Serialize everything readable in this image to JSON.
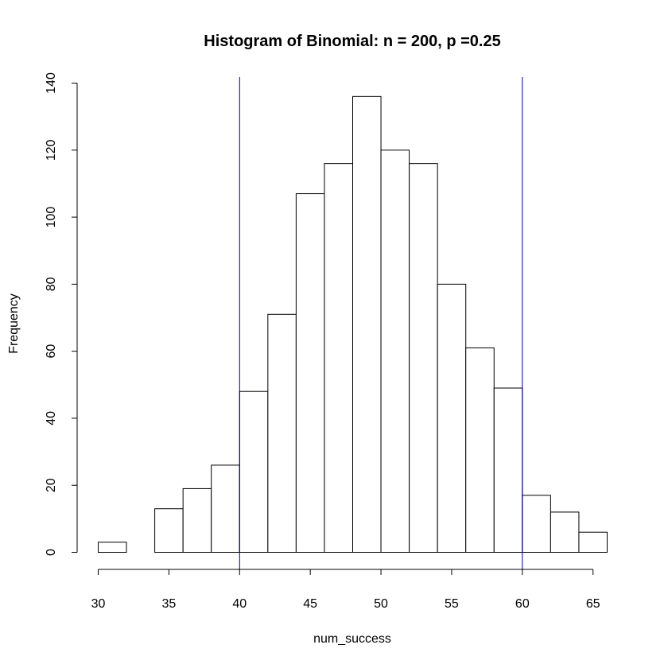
{
  "chart_data": {
    "type": "bar",
    "subtype": "histogram",
    "title": "Histogram of Binomial: n = 200, p =0.25",
    "xlabel": "num_success",
    "ylabel": "Frequency",
    "bins": [
      {
        "from": 30,
        "to": 32,
        "count": 3
      },
      {
        "from": 32,
        "to": 34,
        "count": 0
      },
      {
        "from": 34,
        "to": 36,
        "count": 13
      },
      {
        "from": 36,
        "to": 38,
        "count": 19
      },
      {
        "from": 38,
        "to": 40,
        "count": 26
      },
      {
        "from": 40,
        "to": 42,
        "count": 48
      },
      {
        "from": 42,
        "to": 44,
        "count": 71
      },
      {
        "from": 44,
        "to": 46,
        "count": 107
      },
      {
        "from": 46,
        "to": 48,
        "count": 116
      },
      {
        "from": 48,
        "to": 50,
        "count": 136
      },
      {
        "from": 50,
        "to": 52,
        "count": 120
      },
      {
        "from": 52,
        "to": 54,
        "count": 116
      },
      {
        "from": 54,
        "to": 56,
        "count": 80
      },
      {
        "from": 56,
        "to": 58,
        "count": 61
      },
      {
        "from": 58,
        "to": 60,
        "count": 49
      },
      {
        "from": 60,
        "to": 62,
        "count": 17
      },
      {
        "from": 62,
        "to": 64,
        "count": 12
      },
      {
        "from": 64,
        "to": 66,
        "count": 6
      }
    ],
    "xlim": [
      30,
      66
    ],
    "ylim": [
      0,
      140
    ],
    "xticks": [
      30,
      35,
      40,
      45,
      50,
      55,
      60,
      65
    ],
    "yticks": [
      0,
      20,
      40,
      60,
      80,
      100,
      120,
      140
    ],
    "vlines": [
      40,
      60
    ],
    "vline_color": "#00008b",
    "bar_fill": "#ffffff",
    "bar_stroke": "#000000",
    "grid": false
  }
}
